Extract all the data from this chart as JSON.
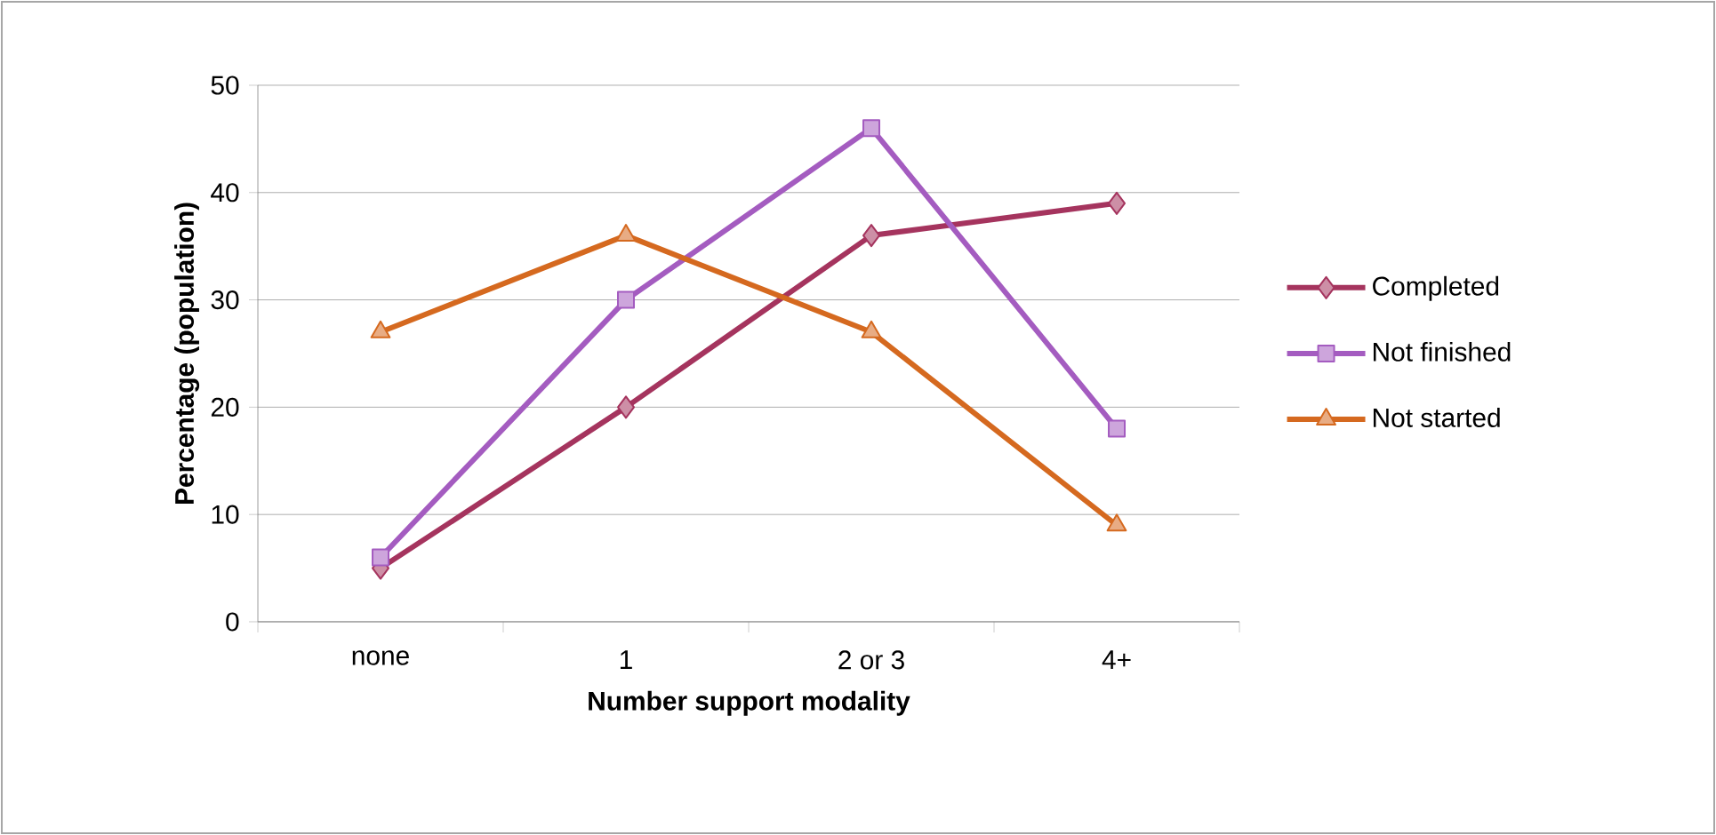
{
  "chart_data": {
    "type": "line",
    "xlabel": "Number support modality",
    "ylabel": "Percentage (population)",
    "categories": [
      "none",
      "1",
      "2 or 3",
      "4+"
    ],
    "series": [
      {
        "name": "Completed",
        "color": "#a5345e",
        "marker": "diamond",
        "values": [
          5,
          20,
          36,
          39
        ]
      },
      {
        "name": "Not finished",
        "color": "#a45cc0",
        "marker": "square",
        "values": [
          6,
          30,
          46,
          18
        ]
      },
      {
        "name": "Not started",
        "color": "#d5691f",
        "marker": "triangle",
        "values": [
          27,
          36,
          27,
          9
        ]
      }
    ],
    "ylim": [
      0,
      50
    ],
    "yticks": [
      0,
      10,
      20,
      30,
      40,
      50
    ],
    "grid": "y",
    "legend": "right",
    "line_style": "solid"
  }
}
